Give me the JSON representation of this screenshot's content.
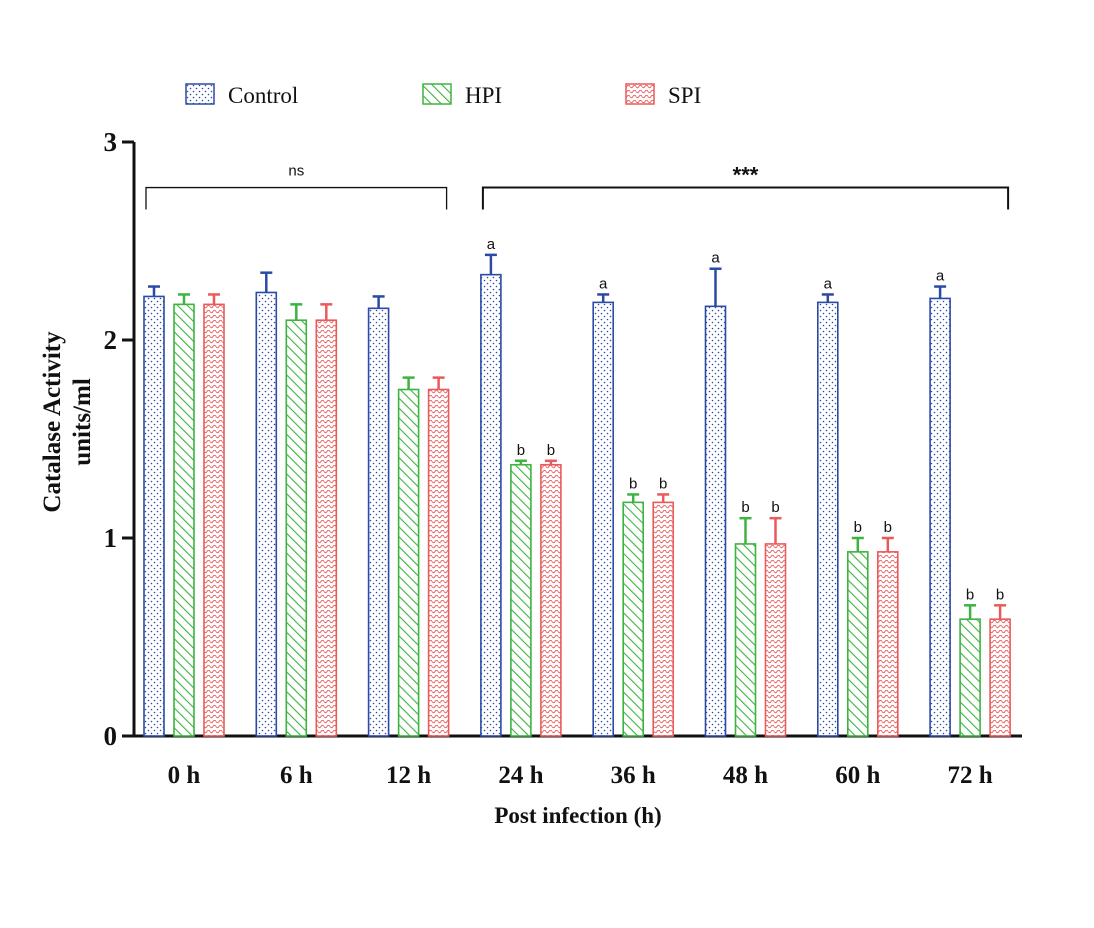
{
  "chart_data": {
    "type": "bar",
    "title": "",
    "xlabel": "Post infection (h)",
    "ylabel_line1": "Catalase Activity",
    "ylabel_line2": "units/ml",
    "ylim": [
      0,
      3
    ],
    "yticks": [
      "0",
      "1",
      "2",
      "3"
    ],
    "grid": false,
    "legend_position": "top",
    "categories": [
      "0 h",
      "6 h",
      "12 h",
      "24 h",
      "36 h",
      "48 h",
      "60 h",
      "72 h"
    ],
    "series": [
      {
        "name": "Control",
        "color": "#2b4aa6",
        "pattern": "dots",
        "values": [
          2.22,
          2.24,
          2.16,
          2.33,
          2.19,
          2.17,
          2.19,
          2.21
        ],
        "errors": [
          0.05,
          0.1,
          0.06,
          0.1,
          0.04,
          0.19,
          0.04,
          0.06
        ],
        "labels": [
          "",
          "",
          "",
          "a",
          "a",
          "a",
          "a",
          "a"
        ]
      },
      {
        "name": "HPI",
        "color": "#3db340",
        "pattern": "hatch",
        "values": [
          2.18,
          2.1,
          1.75,
          1.37,
          1.18,
          0.97,
          0.93,
          0.59
        ],
        "errors": [
          0.05,
          0.08,
          0.06,
          0.02,
          0.04,
          0.13,
          0.07,
          0.07
        ],
        "labels": [
          "",
          "",
          "",
          "b",
          "b",
          "b",
          "b",
          "b"
        ]
      },
      {
        "name": "SPI",
        "color": "#ea5a5a",
        "pattern": "waves",
        "values": [
          2.18,
          2.1,
          1.75,
          1.37,
          1.18,
          0.97,
          0.93,
          0.59
        ],
        "errors": [
          0.05,
          0.08,
          0.06,
          0.02,
          0.04,
          0.13,
          0.07,
          0.07
        ],
        "labels": [
          "",
          "",
          "",
          "b",
          "b",
          "b",
          "b",
          "b"
        ]
      }
    ],
    "significance_brackets": [
      {
        "label": "ns",
        "from_category": 0,
        "to_category": 2,
        "level": 2.77
      },
      {
        "label": "***",
        "from_category": 3,
        "to_category": 7,
        "level": 2.77
      }
    ]
  }
}
